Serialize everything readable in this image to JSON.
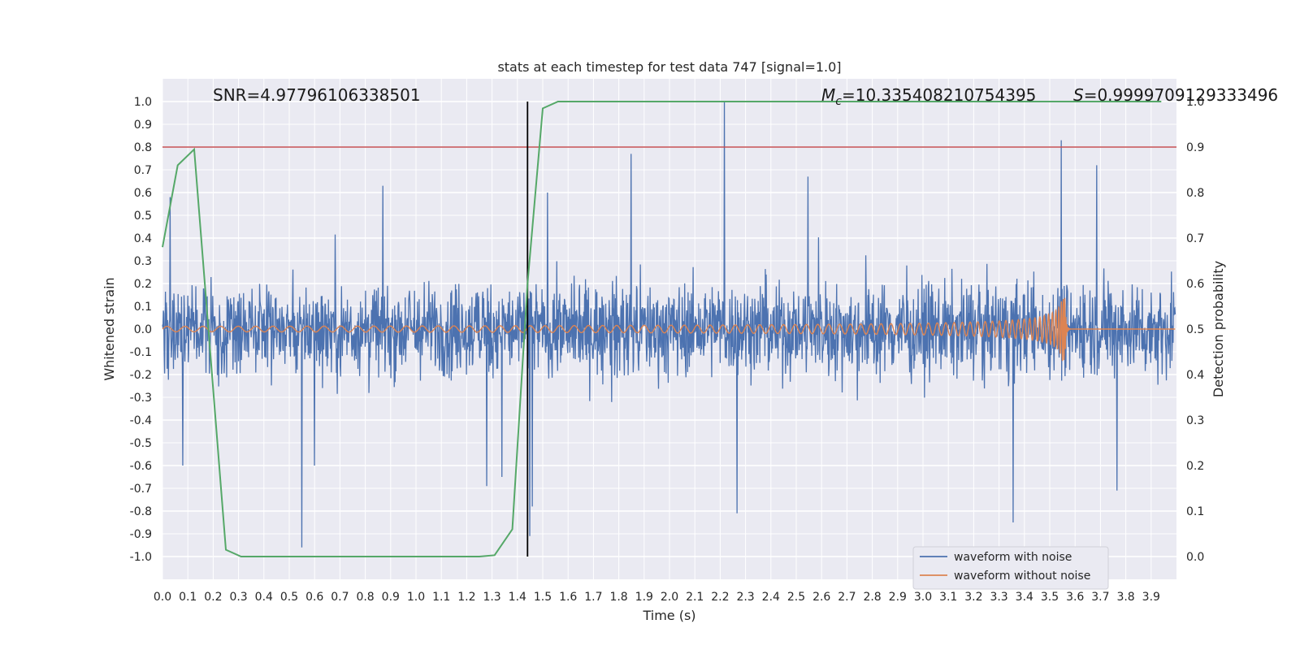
{
  "chart_data": {
    "type": "line",
    "title": "stats at each timestep for test data 747 [signal=1.0]",
    "xlabel": "Time (s)",
    "ylabel_left": "Whitened strain",
    "ylabel_right": "Detection probability",
    "xlim": [
      0.0,
      4.0
    ],
    "ylim_left": [
      -1.1,
      1.1
    ],
    "ylim_right": [
      -0.05,
      1.05
    ],
    "x_ticks": [
      "0.0",
      "0.1",
      "0.2",
      "0.3",
      "0.4",
      "0.5",
      "0.6",
      "0.7",
      "0.8",
      "0.9",
      "1.0",
      "1.1",
      "1.2",
      "1.3",
      "1.4",
      "1.5",
      "1.6",
      "1.7",
      "1.8",
      "1.9",
      "2.0",
      "2.1",
      "2.2",
      "2.3",
      "2.4",
      "2.5",
      "2.6",
      "2.7",
      "2.8",
      "2.9",
      "3.0",
      "3.1",
      "3.2",
      "3.3",
      "3.4",
      "3.5",
      "3.6",
      "3.7",
      "3.8",
      "3.9"
    ],
    "left_ticks": [
      "1.0",
      "0.9",
      "0.8",
      "0.7",
      "0.6",
      "0.5",
      "0.4",
      "0.3",
      "0.2",
      "0.1",
      "0.0",
      "-0.1",
      "-0.2",
      "-0.3",
      "-0.4",
      "-0.5",
      "-0.6",
      "-0.7",
      "-0.8",
      "-0.9",
      "-1.0"
    ],
    "right_ticks": [
      "1.0",
      "0.9",
      "0.8",
      "0.7",
      "0.6",
      "0.5",
      "0.4",
      "0.3",
      "0.2",
      "0.1",
      "0.0"
    ],
    "annotations": {
      "snr": "SNR=4.97796106338501",
      "mc_symbol": "M",
      "mc_sub": "c",
      "mc_value": "=10.335408210754395",
      "s_symbol": "S",
      "s_value": "=0.9999709129333496"
    },
    "threshold": {
      "value": 0.9,
      "axis": "right",
      "color": "#c44e52"
    },
    "event_marker": {
      "x": 1.44,
      "color": "#000000"
    },
    "series": [
      {
        "name": "waveform with noise",
        "color": "#4c72b0",
        "axis": "left",
        "envelope": 0.32,
        "spikes": [
          {
            "x": 0.03,
            "y": 0.58
          },
          {
            "x": 0.08,
            "y": -0.6
          },
          {
            "x": 0.55,
            "y": -0.96
          },
          {
            "x": 0.6,
            "y": -0.6
          },
          {
            "x": 0.87,
            "y": 0.63
          },
          {
            "x": 1.28,
            "y": -0.69
          },
          {
            "x": 1.34,
            "y": -0.65
          },
          {
            "x": 1.45,
            "y": -0.91
          },
          {
            "x": 1.46,
            "y": -0.78
          },
          {
            "x": 1.52,
            "y": 0.6
          },
          {
            "x": 1.85,
            "y": 0.77
          },
          {
            "x": 2.22,
            "y": 1.0
          },
          {
            "x": 2.27,
            "y": -0.81
          },
          {
            "x": 2.55,
            "y": 0.67
          },
          {
            "x": 3.36,
            "y": -0.85
          },
          {
            "x": 3.55,
            "y": 0.83
          },
          {
            "x": 3.69,
            "y": 0.72
          },
          {
            "x": 3.77,
            "y": -0.71
          }
        ]
      },
      {
        "name": "waveform without noise",
        "color": "#dd8452",
        "axis": "left",
        "base_amplitude": 0.012,
        "peak_amplitude": 0.14,
        "merger_time": 3.56
      },
      {
        "name": "detection probability",
        "color": "#55a868",
        "axis": "right",
        "x": [
          0.0,
          0.06,
          0.125,
          0.25,
          0.31,
          0.44,
          0.63,
          0.81,
          1.0,
          1.25,
          1.31,
          1.38,
          1.44,
          1.5,
          1.56,
          1.69,
          2.0,
          2.5,
          3.0,
          3.5,
          3.94
        ],
        "y": [
          0.68,
          0.86,
          0.895,
          0.015,
          0.0,
          0.0,
          0.0,
          0.0,
          0.0,
          0.0,
          0.003,
          0.06,
          0.6,
          0.985,
          1.0,
          1.0,
          1.0,
          1.0,
          1.0,
          1.0,
          1.0
        ]
      }
    ],
    "legend": {
      "position": "lower-right",
      "entries": [
        {
          "label": "waveform with noise",
          "color": "#4c72b0"
        },
        {
          "label": "waveform without noise",
          "color": "#dd8452"
        }
      ]
    }
  }
}
